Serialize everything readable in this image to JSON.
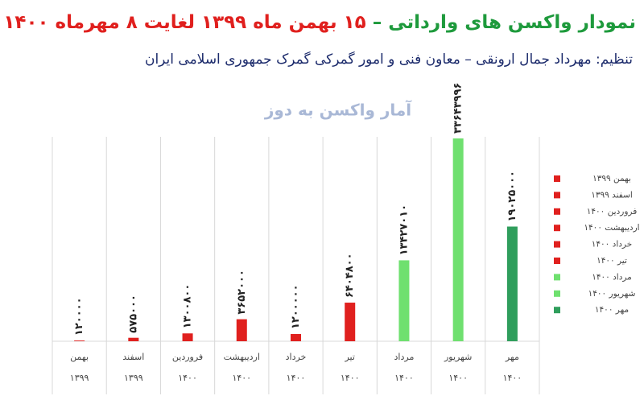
{
  "chart_data": {
    "type": "bar",
    "title": [
      "نمودار واکسن های وارداتی –",
      "۱۵ بهمن ماه ۱۳۹۹ لغایت ۸ مهرماه ۱۴۰۰"
    ],
    "subtitle": "تنظیم: مهرداد جمال ارونقی – معاون فنی و امور گمرکی گمرک جمهوری اسلامی ایران",
    "chart_title": "آمار واکسن به دوز",
    "categories": [
      "بهمن ۱۳۹۹",
      "اسفند ۱۳۹۹",
      "فروردین ۱۴۰۰",
      "اردیبهشت ۱۴۰۰",
      "خرداد ۱۴۰۰",
      "تیر ۱۴۰۰",
      "مرداد ۱۴۰۰",
      "شهریور ۱۴۰۰",
      "مهر ۱۴۰۰"
    ],
    "values": [
      120000,
      575000,
      1300800,
      3652000,
      1200000,
      6404800,
      13427010,
      33643996,
      19025000
    ],
    "value_labels": [
      "۱۲۰۰۰۰",
      "۵۷۵۰۰۰",
      "۱۳۰۰۸۰۰",
      "۳۶۵۲۰۰۰",
      "۱۲۰۰۰۰۰",
      "۶۴۰۴۸۰۰",
      "۱۳۴۲۷۰۱۰",
      "۳۳۶۴۳۹۹۶",
      "۱۹۰۲۵۰۰۰"
    ],
    "colors": [
      "#e0201e",
      "#e0201e",
      "#e0201e",
      "#e0201e",
      "#e0201e",
      "#e0201e",
      "#6fe06f",
      "#6fe06f",
      "#2f9e5c"
    ]
  }
}
